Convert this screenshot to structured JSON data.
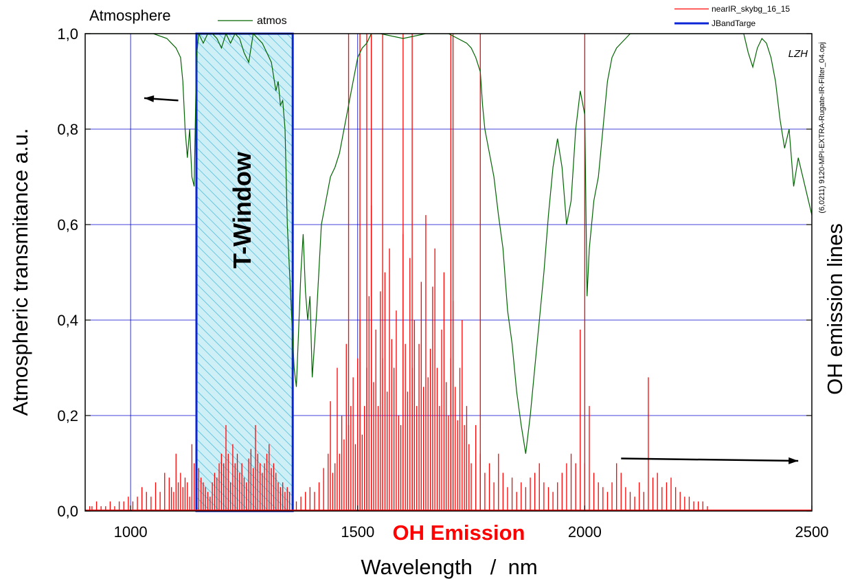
{
  "colors": {
    "atmos": "#006400",
    "oh": "#ff0000",
    "window": "#0a24d6",
    "grid": "#0000cc",
    "hatch": "#40b8d8",
    "hatch_fill": "#cfeff6"
  },
  "chart_data": {
    "type": "line",
    "title": "Atmosphere",
    "xlabel": "Wavelength   /  nm",
    "ylabel_left": "Atmospheric transmitance  a.u.",
    "ylabel_right": "OH emission lines",
    "xlim": [
      900,
      2500
    ],
    "ylim": [
      0,
      1
    ],
    "x_ticks": [
      {
        "value": 1000,
        "label": "1000"
      },
      {
        "value": 1500,
        "label": "1500"
      },
      {
        "value": 2000,
        "label": "2000"
      },
      {
        "value": 2500,
        "label": "2500"
      }
    ],
    "y_ticks": [
      {
        "value": 0.0,
        "label": "0,0"
      },
      {
        "value": 0.2,
        "label": "0,2"
      },
      {
        "value": 0.4,
        "label": "0,4"
      },
      {
        "value": 0.6,
        "label": "0,6"
      },
      {
        "value": 0.8,
        "label": "0,8"
      },
      {
        "value": 1.0,
        "label": "1,0"
      }
    ],
    "grid": true,
    "legend": [
      {
        "name": "atmos",
        "placement": "top-left"
      },
      {
        "name": "nearIR_skybg_16_15",
        "placement": "top-right"
      },
      {
        "name": "JBandTarge",
        "placement": "top-right"
      }
    ],
    "annotations": {
      "window_label": "T-Window",
      "emission_label": "OH Emission",
      "corner_mark": "LZH",
      "filename": "(6,0211) 9120-MPI-EXTRA-Rugate-IR-Filter_04.opj"
    },
    "arrows": [
      {
        "from": [
          1105,
          0.86
        ],
        "to": [
          1030,
          0.865
        ],
        "meaning": "left axis"
      },
      {
        "from": [
          2080,
          0.11
        ],
        "to": [
          2470,
          0.105
        ],
        "meaning": "right axis"
      }
    ],
    "window": {
      "x0": 1145,
      "x1": 1357,
      "y": 1.0
    },
    "series": [
      {
        "name": "atmos",
        "x": [
          900,
          1000,
          1050,
          1080,
          1090,
          1100,
          1105,
          1110,
          1115,
          1120,
          1125,
          1130,
          1135,
          1140,
          1145,
          1150,
          1160,
          1170,
          1180,
          1190,
          1200,
          1210,
          1220,
          1230,
          1240,
          1250,
          1260,
          1265,
          1270,
          1280,
          1290,
          1300,
          1310,
          1320,
          1325,
          1330,
          1335,
          1340,
          1345,
          1350,
          1355,
          1360,
          1365,
          1370,
          1375,
          1380,
          1385,
          1390,
          1395,
          1400,
          1405,
          1410,
          1420,
          1430,
          1440,
          1450,
          1460,
          1470,
          1480,
          1490,
          1500,
          1510,
          1520,
          1530,
          1550,
          1600,
          1650,
          1700,
          1740,
          1750,
          1760,
          1770,
          1775,
          1780,
          1790,
          1800,
          1810,
          1820,
          1830,
          1840,
          1850,
          1860,
          1870,
          1880,
          1890,
          1900,
          1910,
          1920,
          1930,
          1940,
          1950,
          1960,
          1970,
          1980,
          1990,
          2000,
          2005,
          2010,
          2020,
          2030,
          2040,
          2050,
          2060,
          2070,
          2080,
          2090,
          2100,
          2150,
          2200,
          2250,
          2300,
          2350,
          2360,
          2370,
          2380,
          2390,
          2400,
          2410,
          2420,
          2430,
          2440,
          2450,
          2460,
          2470,
          2480,
          2490,
          2500
        ],
        "values": [
          1.0,
          1.0,
          1.0,
          0.99,
          0.98,
          0.97,
          0.96,
          0.95,
          0.9,
          0.8,
          0.74,
          0.8,
          0.7,
          0.68,
          0.95,
          1.0,
          0.98,
          1.0,
          1.0,
          0.99,
          0.97,
          1.0,
          0.98,
          1.0,
          0.99,
          0.96,
          0.94,
          0.97,
          1.0,
          0.99,
          0.98,
          0.96,
          0.94,
          0.88,
          0.9,
          0.85,
          0.86,
          0.8,
          0.6,
          0.5,
          0.4,
          0.3,
          0.26,
          0.38,
          0.5,
          0.58,
          0.46,
          0.4,
          0.45,
          0.28,
          0.35,
          0.42,
          0.6,
          0.65,
          0.7,
          0.72,
          0.75,
          0.8,
          0.85,
          0.9,
          0.95,
          0.97,
          0.98,
          1.0,
          1.0,
          0.99,
          1.0,
          1.0,
          0.98,
          0.97,
          0.95,
          0.92,
          0.85,
          0.8,
          0.75,
          0.7,
          0.62,
          0.55,
          0.42,
          0.35,
          0.25,
          0.18,
          0.12,
          0.2,
          0.3,
          0.4,
          0.5,
          0.62,
          0.72,
          0.78,
          0.72,
          0.6,
          0.65,
          0.8,
          0.88,
          0.83,
          0.45,
          0.55,
          0.65,
          0.7,
          0.8,
          0.9,
          0.95,
          0.97,
          0.98,
          0.99,
          1.0,
          1.0,
          1.0,
          1.0,
          1.0,
          1.0,
          0.96,
          0.93,
          0.97,
          0.99,
          0.98,
          0.95,
          0.9,
          0.82,
          0.76,
          0.8,
          0.68,
          0.74,
          0.7,
          0.66,
          0.62
        ]
      },
      {
        "name": "nearIR_skybg_16_15",
        "x": [
          910,
          915,
          925,
          935,
          945,
          955,
          965,
          975,
          985,
          995,
          1005,
          1015,
          1025,
          1035,
          1045,
          1055,
          1065,
          1075,
          1085,
          1090,
          1095,
          1100,
          1105,
          1110,
          1115,
          1120,
          1125,
          1130,
          1135,
          1140,
          1150,
          1155,
          1160,
          1165,
          1170,
          1175,
          1180,
          1185,
          1190,
          1195,
          1200,
          1205,
          1210,
          1215,
          1220,
          1225,
          1230,
          1235,
          1240,
          1245,
          1250,
          1255,
          1260,
          1265,
          1270,
          1275,
          1280,
          1285,
          1290,
          1295,
          1300,
          1305,
          1310,
          1315,
          1320,
          1325,
          1330,
          1335,
          1340,
          1345,
          1350,
          1365,
          1375,
          1385,
          1395,
          1405,
          1415,
          1425,
          1435,
          1440,
          1445,
          1450,
          1455,
          1460,
          1465,
          1470,
          1475,
          1480,
          1485,
          1490,
          1495,
          1500,
          1505,
          1510,
          1515,
          1520,
          1525,
          1530,
          1535,
          1540,
          1545,
          1550,
          1555,
          1560,
          1565,
          1570,
          1575,
          1580,
          1585,
          1590,
          1595,
          1600,
          1605,
          1610,
          1615,
          1620,
          1625,
          1630,
          1635,
          1640,
          1645,
          1650,
          1655,
          1660,
          1665,
          1670,
          1675,
          1680,
          1685,
          1690,
          1695,
          1700,
          1705,
          1710,
          1715,
          1720,
          1725,
          1730,
          1735,
          1740,
          1745,
          1750,
          1760,
          1770,
          1780,
          1790,
          1800,
          1810,
          1820,
          1830,
          1840,
          1850,
          1860,
          1870,
          1880,
          1890,
          1900,
          1910,
          1920,
          1930,
          1940,
          1950,
          1960,
          1970,
          1980,
          1990,
          2000,
          2010,
          2020,
          2030,
          2040,
          2050,
          2060,
          2070,
          2080,
          2090,
          2100,
          2110,
          2120,
          2130,
          2140,
          2150,
          2160,
          2170,
          2180,
          2190,
          2200,
          2210,
          2220,
          2230,
          2240,
          2250,
          2260,
          2270
        ],
        "values": [
          0.01,
          0.01,
          0.02,
          0.01,
          0.01,
          0.02,
          0.01,
          0.02,
          0.02,
          0.03,
          0.02,
          0.03,
          0.05,
          0.04,
          0.03,
          0.06,
          0.04,
          0.08,
          0.07,
          0.05,
          0.04,
          0.12,
          0.06,
          0.08,
          0.05,
          0.07,
          0.06,
          0.03,
          0.14,
          0.1,
          0.09,
          0.07,
          0.06,
          0.05,
          0.04,
          0.03,
          0.06,
          0.08,
          0.07,
          0.1,
          0.12,
          0.1,
          0.18,
          0.12,
          0.06,
          0.14,
          0.1,
          0.12,
          0.08,
          0.1,
          0.07,
          0.06,
          0.11,
          0.13,
          0.09,
          0.18,
          0.12,
          0.1,
          0.08,
          0.1,
          0.12,
          0.14,
          0.09,
          0.1,
          0.08,
          0.06,
          0.05,
          0.06,
          0.04,
          0.05,
          0.04,
          0.02,
          0.03,
          0.04,
          0.05,
          0.04,
          0.06,
          0.09,
          0.12,
          0.23,
          0.08,
          0.1,
          0.3,
          0.12,
          0.2,
          0.15,
          0.35,
          0.18,
          0.22,
          0.28,
          0.14,
          0.32,
          0.4,
          0.16,
          0.22,
          0.3,
          0.45,
          0.64,
          0.27,
          0.38,
          0.22,
          0.46,
          0.32,
          0.5,
          0.25,
          0.55,
          0.36,
          0.3,
          0.42,
          0.2,
          0.18,
          0.58,
          0.35,
          0.25,
          0.53,
          0.3,
          0.4,
          0.22,
          0.35,
          0.48,
          0.26,
          0.62,
          0.28,
          0.34,
          0.47,
          0.55,
          0.3,
          0.22,
          0.38,
          0.5,
          0.27,
          0.2,
          0.32,
          0.44,
          0.26,
          0.19,
          0.3,
          0.4,
          0.18,
          0.22,
          0.14,
          0.1,
          0.18,
          0.12,
          0.08,
          0.1,
          0.06,
          0.12,
          0.08,
          0.05,
          0.07,
          0.04,
          0.06,
          0.05,
          0.07,
          0.08,
          0.1,
          0.06,
          0.05,
          0.04,
          0.06,
          0.08,
          0.1,
          0.12,
          0.1,
          0.38,
          0.1,
          0.22,
          0.08,
          0.06,
          0.05,
          0.04,
          0.06,
          0.1,
          0.08,
          0.05,
          0.04,
          0.03,
          0.06,
          0.04,
          0.28,
          0.07,
          0.08,
          0.05,
          0.06,
          0.07,
          0.05,
          0.04,
          0.03,
          0.03,
          0.02,
          0.02,
          0.02,
          0.01
        ]
      }
    ],
    "spikes": [
      1480,
      1505,
      1520,
      1530,
      1555,
      1600,
      1620,
      1705,
      1710,
      1770,
      2000
    ]
  }
}
